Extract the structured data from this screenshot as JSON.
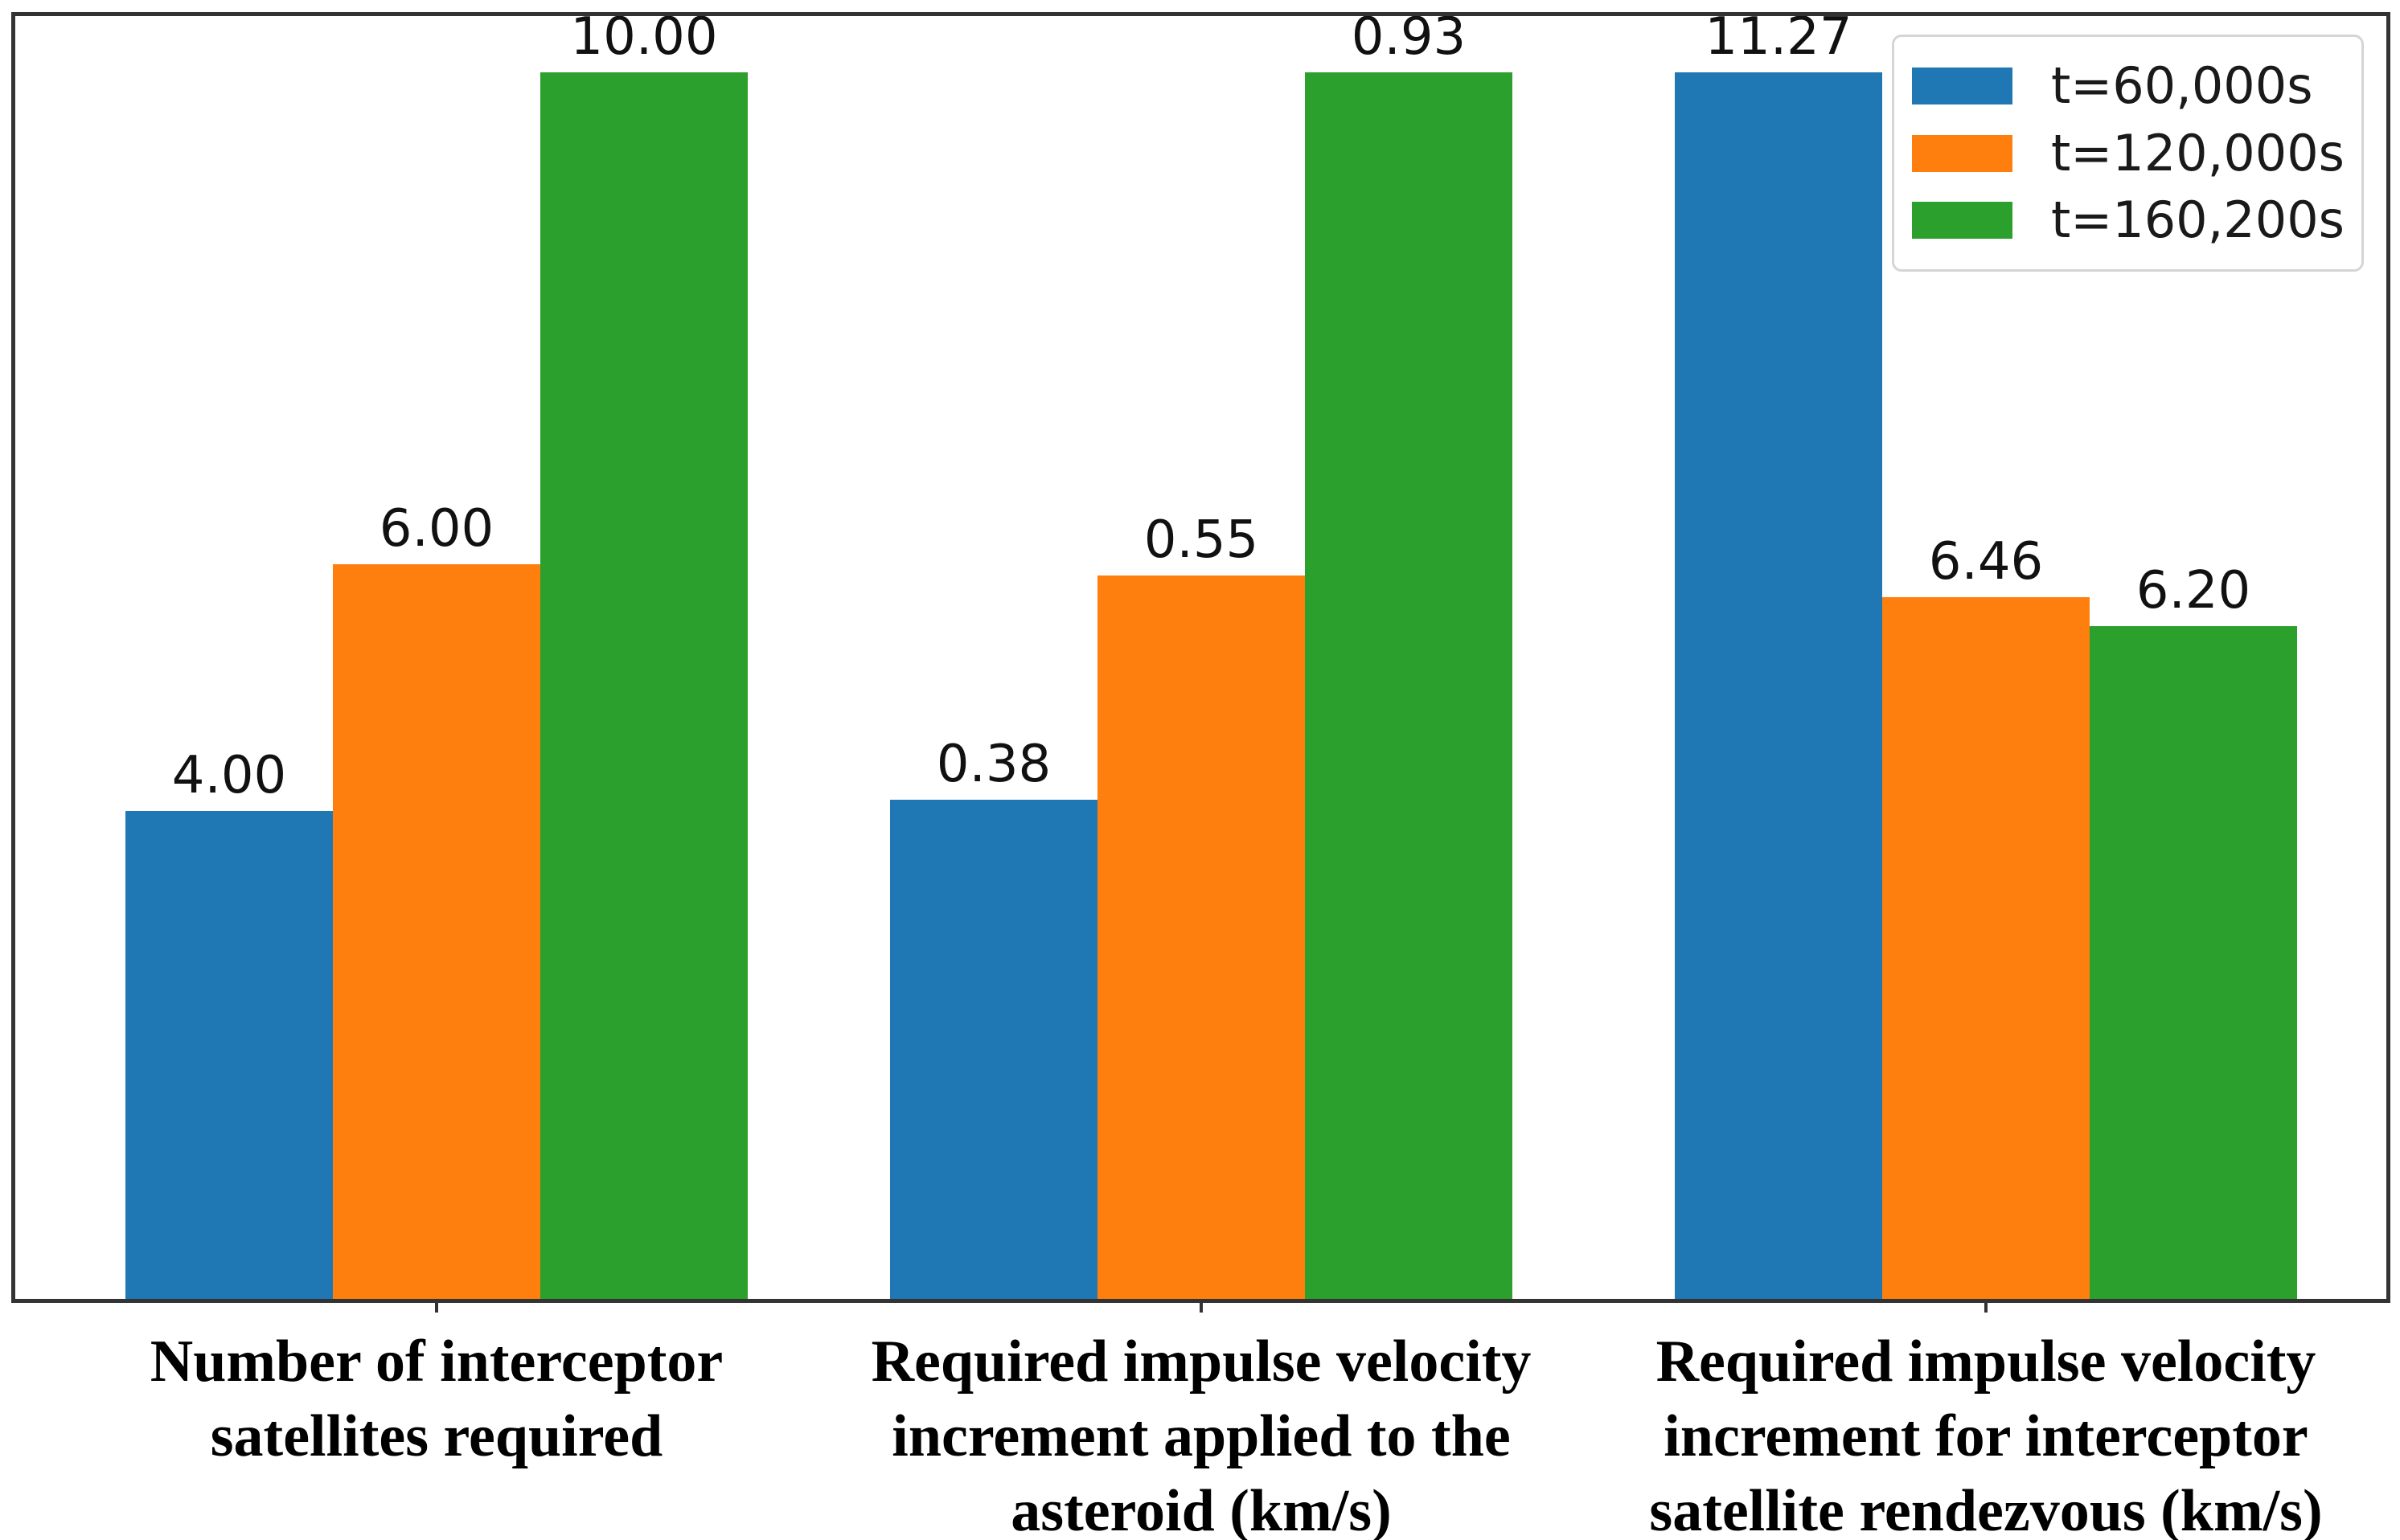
{
  "figure": {
    "background": "#ffffff",
    "frame_color": "#333333"
  },
  "legend": {
    "position": "upper-right",
    "items": [
      {
        "label": "t=60,000s",
        "color": "#1f77b4"
      },
      {
        "label": "t=120,000s",
        "color": "#ff7f0e"
      },
      {
        "label": "t=160,200s",
        "color": "#2ca02c"
      }
    ]
  },
  "chart_data": {
    "type": "bar",
    "title": "",
    "xlabel": "",
    "ylabel": "",
    "grid": false,
    "y_axis_visible": false,
    "legend_position": "upper right",
    "normalization": "bar heights scaled per group: the tallest bar in each category group reaches the full plot height",
    "categories": [
      "Number of interceptor satellites required",
      "Required impulse velocity increment applied to the asteroid (km/s)",
      "Required impulse velocity increment for interceptor satellite rendezvous (km/s)"
    ],
    "category_lines": [
      [
        "Number of interceptor",
        "satellites required"
      ],
      [
        "Required impulse velocity",
        "increment applied to the",
        "asteroid (km/s)"
      ],
      [
        "Required impulse velocity",
        "increment for interceptor",
        "satellite rendezvous (km/s)"
      ]
    ],
    "series": [
      {
        "name": "t=60,000s",
        "color": "#1f77b4",
        "values": [
          4.0,
          0.38,
          11.27
        ],
        "labels": [
          "4.00",
          "0.38",
          "11.27"
        ]
      },
      {
        "name": "t=120,000s",
        "color": "#ff7f0e",
        "values": [
          6.0,
          0.55,
          6.46
        ],
        "labels": [
          "6.00",
          "0.55",
          "6.46"
        ]
      },
      {
        "name": "t=160,200s",
        "color": "#2ca02c",
        "values": [
          10.0,
          0.93,
          6.2
        ],
        "labels": [
          "10.00",
          "0.93",
          "6.20"
        ]
      }
    ]
  }
}
